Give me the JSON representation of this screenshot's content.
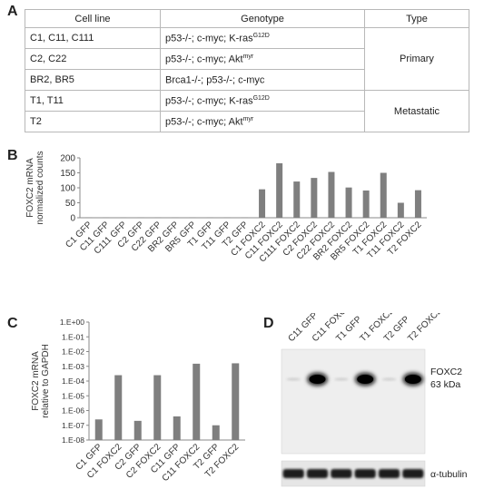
{
  "panels": {
    "a": "A",
    "b": "B",
    "c": "C",
    "d": "D"
  },
  "table": {
    "headers": [
      "Cell line",
      "Genotype",
      "Type"
    ],
    "rows": [
      {
        "cell_line": "C1, C11, C111",
        "genotype": "p53-/-; c-myc; K-ras",
        "sup": "G12D"
      },
      {
        "cell_line": "C2, C22",
        "genotype": "p53-/-; c-myc; Akt",
        "sup": "myr"
      },
      {
        "cell_line": "BR2, BR5",
        "genotype": "Brca1-/-; p53-/-; c-myc",
        "sup": ""
      },
      {
        "cell_line": "T1, T11",
        "genotype": "p53-/-; c-myc; K-ras",
        "sup": "G12D"
      },
      {
        "cell_line": "T2",
        "genotype": "p53-/-; c-myc; Akt",
        "sup": "myr"
      }
    ],
    "types": [
      "Primary",
      "Metastatic"
    ]
  },
  "chart_data": [
    {
      "type": "bar",
      "ylabel": "FOXC2 mRNA normalized counts",
      "ylabel_lines": [
        "FOXC2 mRNA",
        "normalized counts"
      ],
      "ylim": [
        0,
        200
      ],
      "yticks": [
        "0",
        "50",
        "100",
        "150",
        "200"
      ],
      "categories": [
        "C1 GFP",
        "C11 GFP",
        "C111 GFP",
        "C2 GFP",
        "C22 GFP",
        "BR2 GFP",
        "BR5 GFP",
        "T1 GFP",
        "T11 GFP",
        "T2 GFP",
        "C1 FOXC2",
        "C11 FOXC2",
        "C111 FOXC2",
        "C2 FOXC2",
        "C22 FOXC2",
        "BR2 FOXC2",
        "BR5 FOXC2",
        "T1 FOXC2",
        "T11 FOXC2",
        "T2 FOXC2"
      ],
      "values": [
        1,
        1,
        1,
        1,
        1,
        1,
        1,
        1,
        1,
        1,
        95,
        182,
        121,
        133,
        153,
        101,
        91,
        150,
        50,
        92
      ],
      "grid": false
    },
    {
      "type": "bar",
      "scale": "log",
      "ylabel": "FOXC2 mRNA relative to GAPDH",
      "ylabel_lines": [
        "FOXC2 mRNA",
        "relative to GAPDH"
      ],
      "ylim": [
        1e-08,
        1
      ],
      "yticks": [
        "1.E-08",
        "1.E-07",
        "1.E-06",
        "1.E-05",
        "1.E-04",
        "1.E-03",
        "1.E-02",
        "1.E-01",
        "1.E+00"
      ],
      "categories": [
        "C1 GFP",
        "C1 FOXC2",
        "C2 GFP",
        "C2 FOXC2",
        "C11 GFP",
        "C11 FOXC2",
        "T2 GFP",
        "T2 FOXC2"
      ],
      "values": [
        2.5e-07,
        0.00025,
        2e-07,
        0.00025,
        4e-07,
        0.0015,
        1e-07,
        0.0016
      ],
      "grid": false
    }
  ],
  "blot": {
    "lanes": [
      "C11 GFP",
      "C11 FOXC2",
      "T1 GFP",
      "T1 FOXC2",
      "T2 GFP",
      "T2 FOXC2"
    ],
    "band_label_1": "FOXC2",
    "band_label_2": "63 kDa",
    "loading_label": "α-tubulin"
  }
}
